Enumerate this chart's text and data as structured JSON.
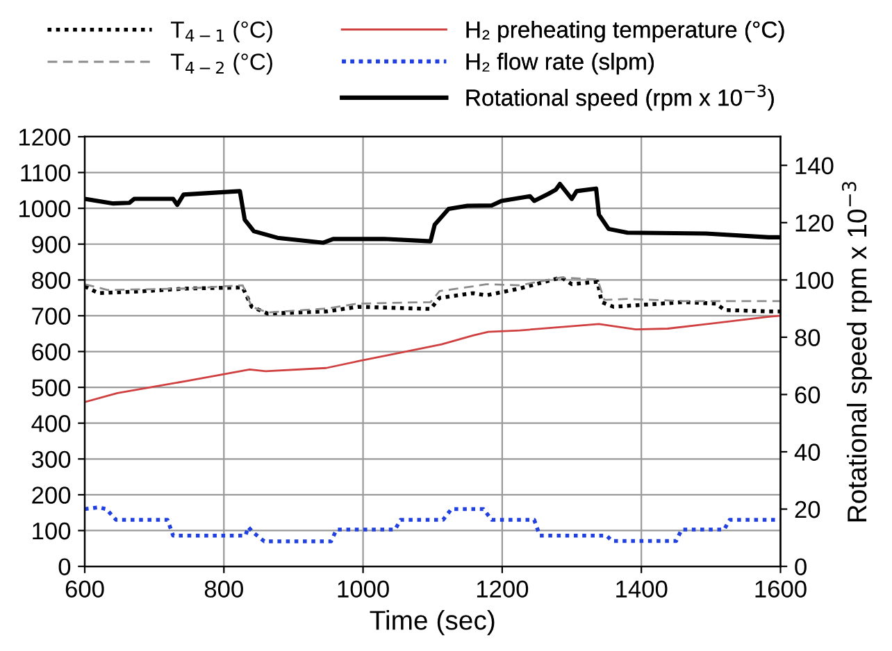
{
  "chart_data": {
    "type": "line",
    "xlabel": "Time (sec)",
    "y2label": "Rotational speed rpm x 10$^{−3}$",
    "xlim": [
      600,
      1600
    ],
    "xticks": [
      600,
      800,
      1000,
      1200,
      1400,
      1600
    ],
    "ylim": [
      0,
      1200
    ],
    "yticks": [
      0,
      100,
      200,
      300,
      400,
      500,
      600,
      700,
      800,
      900,
      1000,
      1100,
      1200
    ],
    "y2lim": [
      0,
      150
    ],
    "y2ticks": [
      0,
      20,
      40,
      60,
      80,
      100,
      120,
      140
    ],
    "grid": true,
    "legend": "top",
    "marker": "none",
    "series": [
      {
        "name": "T$_{4−1}$ (°C)",
        "color": "#000000",
        "line_style": "dotted",
        "x": [
          600,
          620,
          680,
          747,
          827,
          840,
          863,
          947,
          993,
          1097,
          1110,
          1158,
          1177,
          1225,
          1285,
          1300,
          1337,
          1343,
          1360,
          1460,
          1507,
          1520,
          1583,
          1600
        ],
        "values": [
          782,
          763,
          768,
          776,
          779,
          725,
          706,
          712,
          725,
          719,
          750,
          763,
          757,
          776,
          807,
          788,
          795,
          738,
          725,
          738,
          734,
          716,
          712,
          712
        ]
      },
      {
        "name": "T$_{4−2}$ (°C)",
        "color": "#8c8c8c",
        "line_style": "dashed",
        "x": [
          600,
          633,
          747,
          827,
          840,
          863,
          947,
          993,
          1097,
          1110,
          1158,
          1177,
          1225,
          1285,
          1337,
          1347,
          1380,
          1460,
          1583,
          1600
        ],
        "values": [
          788,
          772,
          776,
          785,
          725,
          709,
          720,
          734,
          738,
          769,
          782,
          788,
          785,
          807,
          801,
          744,
          747,
          741,
          741,
          741
        ]
      },
      {
        "name": "H₂ preheating temperature (°C)",
        "color": "#d04040",
        "line_style": "solid",
        "x": [
          600,
          647,
          747,
          837,
          860,
          947,
          993,
          1113,
          1158,
          1180,
          1225,
          1339,
          1392,
          1438,
          1583,
          1600
        ],
        "values": [
          459,
          484,
          518,
          550,
          545,
          554,
          573,
          620,
          645,
          655,
          659,
          677,
          662,
          664,
          697,
          700
        ]
      },
      {
        "name": "H₂ flow rate (slpm)",
        "color": "#2040e0",
        "line_style": "dotted",
        "x": [
          600,
          620,
          631,
          645,
          719,
          727,
          831,
          835,
          842,
          858,
          954,
          962,
          1046,
          1054,
          1115,
          1127,
          1173,
          1185,
          1246,
          1254,
          1350,
          1358,
          1450,
          1458,
          1519,
          1527,
          1600
        ],
        "values": [
          160,
          165,
          160,
          130,
          130,
          86,
          86,
          110,
          95,
          70,
          70,
          103,
          103,
          130,
          130,
          160,
          160,
          130,
          130,
          86,
          86,
          71,
          71,
          103,
          103,
          130,
          130
        ]
      },
      {
        "name": "Rotational speed (rpm x 10$^{−3}$)",
        "color": "#000000",
        "line_style": "solid",
        "axis": "y2",
        "x": [
          600,
          641,
          664,
          671,
          727,
          733,
          742,
          823,
          830,
          843,
          877,
          943,
          957,
          1030,
          1097,
          1103,
          1123,
          1150,
          1185,
          1199,
          1240,
          1246,
          1266,
          1277,
          1283,
          1300,
          1307,
          1335,
          1339,
          1353,
          1380,
          1493,
          1583,
          1600
        ],
        "values": [
          128.3,
          126.7,
          126.9,
          128.3,
          128.3,
          126.2,
          129.8,
          131,
          121,
          117,
          114.7,
          113,
          114.3,
          114.3,
          113.5,
          119.3,
          124.8,
          125.9,
          126,
          127.6,
          129.2,
          127.6,
          130,
          131.5,
          133.5,
          128.3,
          131,
          131.9,
          122.8,
          117.8,
          116.5,
          116.2,
          114.9,
          114.9
        ]
      }
    ]
  }
}
